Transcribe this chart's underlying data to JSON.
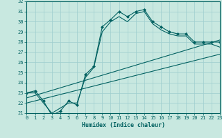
{
  "xlabel": "Humidex (Indice chaleur)",
  "xlim": [
    0,
    23
  ],
  "ylim": [
    21,
    32
  ],
  "xticks": [
    0,
    1,
    2,
    3,
    4,
    5,
    6,
    7,
    8,
    9,
    10,
    11,
    12,
    13,
    14,
    15,
    16,
    17,
    18,
    19,
    20,
    21,
    22,
    23
  ],
  "yticks": [
    21,
    22,
    23,
    24,
    25,
    26,
    27,
    28,
    29,
    30,
    31,
    32
  ],
  "bg_color": "#c8e8e0",
  "grid_color": "#9ecece",
  "line_color": "#006060",
  "line1_x": [
    0,
    1,
    2,
    3,
    4,
    5,
    6,
    7,
    8,
    9,
    10,
    11,
    12,
    13,
    14,
    15,
    16,
    17,
    18,
    19,
    20,
    21,
    22,
    23
  ],
  "line1_y": [
    23.0,
    23.2,
    22.2,
    20.8,
    21.2,
    22.2,
    21.8,
    24.8,
    25.6,
    29.5,
    30.2,
    31.0,
    30.5,
    31.0,
    31.2,
    30.0,
    29.5,
    29.0,
    28.8,
    28.8,
    28.0,
    28.0,
    28.0,
    28.0
  ],
  "line2_x": [
    0,
    1,
    2,
    3,
    4,
    5,
    6,
    7,
    8,
    9,
    10,
    11,
    12,
    13,
    14,
    15,
    16,
    17,
    18,
    19,
    20,
    21,
    22,
    23
  ],
  "line2_y": [
    23.0,
    23.0,
    22.0,
    21.0,
    21.5,
    22.0,
    22.0,
    24.5,
    25.5,
    29.0,
    30.0,
    30.5,
    30.0,
    30.8,
    31.0,
    29.8,
    29.2,
    28.8,
    28.6,
    28.6,
    27.8,
    27.8,
    27.8,
    27.5
  ],
  "line3_x": [
    0,
    23
  ],
  "line3_y": [
    22.5,
    28.2
  ],
  "line4_x": [
    0,
    23
  ],
  "line4_y": [
    22.0,
    26.8
  ]
}
